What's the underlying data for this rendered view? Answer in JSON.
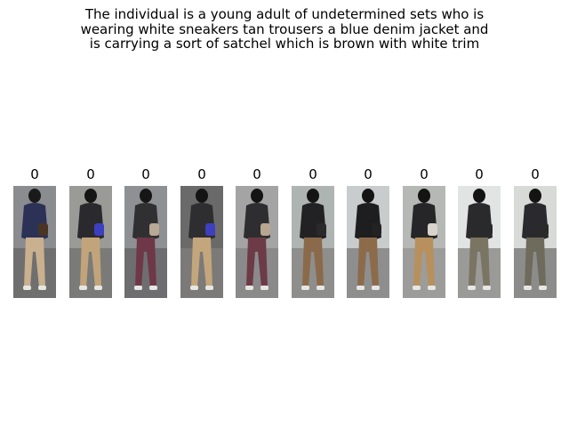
{
  "caption": {
    "lines": [
      "The individual is a young adult of undetermined sets who is",
      "wearing white sneakers tan trousers a blue denim jacket and",
      "is carrying a sort of satchel which is brown with white trim"
    ]
  },
  "gallery": {
    "items": [
      {
        "label": "0",
        "bg": "#8a8c90",
        "ground": "#6f6f70",
        "top": "#2c3256",
        "legs": "#c9b08e",
        "hair": "#1a1a1a",
        "bag": "#4a3524"
      },
      {
        "label": "0",
        "bg": "#9a9a96",
        "ground": "#7a7a78",
        "top": "#2a2a2e",
        "legs": "#c2a47a",
        "hair": "#151515",
        "bag": "#3b3fc0"
      },
      {
        "label": "0",
        "bg": "#8e9094",
        "ground": "#6e6e70",
        "top": "#303032",
        "legs": "#6e3848",
        "hair": "#161616",
        "bag": "#b9a893"
      },
      {
        "label": "0",
        "bg": "#6b6a6a",
        "ground": "#7c7a78",
        "top": "#2e2e30",
        "legs": "#c4a67c",
        "hair": "#141414",
        "bag": "#3d3fbf"
      },
      {
        "label": "0",
        "bg": "#a4a4a4",
        "ground": "#8a8a8a",
        "top": "#2e2e30",
        "legs": "#6d3a48",
        "hair": "#141414",
        "bag": "#b8a690"
      },
      {
        "label": "0",
        "bg": "#aeb4b2",
        "ground": "#8e8e8c",
        "top": "#222224",
        "legs": "#8a6a4a",
        "hair": "#141414",
        "bag": "#2a2a2a"
      },
      {
        "label": "0",
        "bg": "#c9cccc",
        "ground": "#8e8e8e",
        "top": "#1e1e20",
        "legs": "#8c6b4b",
        "hair": "#141414",
        "bag": "#222222"
      },
      {
        "label": "0",
        "bg": "#b6b8b6",
        "ground": "#9c9c9a",
        "top": "#262628",
        "legs": "#b8905e",
        "hair": "#141414",
        "bag": "#d8d4cc"
      },
      {
        "label": "0",
        "bg": "#e2e4e4",
        "ground": "#9a9a98",
        "top": "#2a2a2c",
        "legs": "#7a7462",
        "hair": "#141414",
        "bag": "#2a2a2a"
      },
      {
        "label": "0",
        "bg": "#d8dad8",
        "ground": "#8c8c8a",
        "top": "#2a2a2e",
        "legs": "#6e6a5c",
        "hair": "#141414",
        "bag": "#2a2a2a"
      }
    ]
  }
}
